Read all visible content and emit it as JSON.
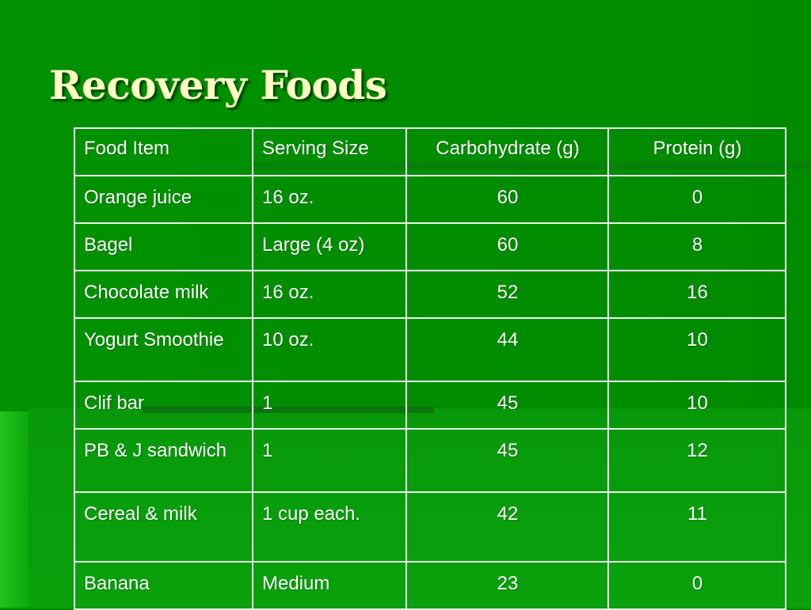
{
  "title": "Recovery Foods",
  "table": {
    "headers": [
      "Food Item",
      "Serving Size",
      "Carbohydrate (g)",
      "Protein (g)"
    ],
    "rows": [
      {
        "food": "Orange juice",
        "serving": "16 oz.",
        "carbs": "60",
        "protein": "0"
      },
      {
        "food": "Bagel",
        "serving": "Large (4 oz)",
        "carbs": "60",
        "protein": "8"
      },
      {
        "food": "Chocolate milk",
        "serving": "16 oz.",
        "carbs": "52",
        "protein": "16"
      },
      {
        "food": "Yogurt Smoothie",
        "serving": "10 oz.",
        "carbs": "44",
        "protein": "10"
      },
      {
        "food": "Clif bar",
        "serving": "1",
        "carbs": "45",
        "protein": "10"
      },
      {
        "food": "PB & J sandwich",
        "serving": "1",
        "carbs": "45",
        "protein": "12"
      },
      {
        "food": "Cereal & milk",
        "serving": "1 cup each.",
        "carbs": "42",
        "protein": "11"
      },
      {
        "food": "Banana",
        "serving": "Medium",
        "carbs": "23",
        "protein": "0"
      }
    ]
  },
  "colors": {
    "background": "#008d00",
    "title": "#ffffc4",
    "text": "#ffffff",
    "grid": "#e8f5e8"
  }
}
